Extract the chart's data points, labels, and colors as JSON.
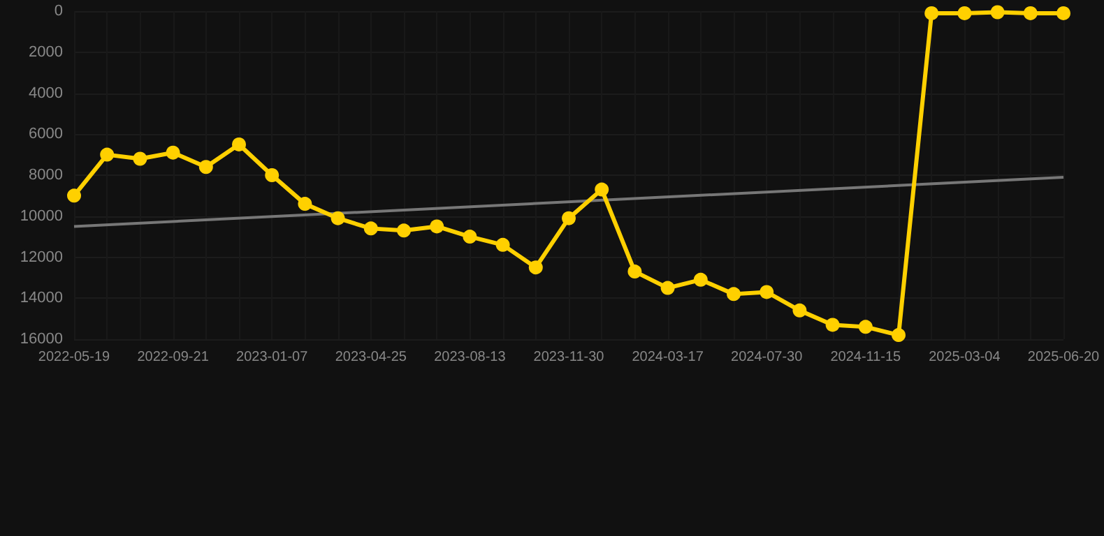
{
  "chart_data": {
    "type": "line",
    "categories": [
      "2022-05-19",
      null,
      null,
      "2022-09-21",
      null,
      null,
      "2023-01-07",
      null,
      null,
      "2023-04-25",
      null,
      null,
      "2023-08-13",
      null,
      null,
      "2023-11-30",
      null,
      null,
      "2024-03-17",
      null,
      null,
      "2024-07-30",
      null,
      null,
      "2024-11-15",
      null,
      null,
      "2025-03-04",
      null,
      null,
      "2025-06-20"
    ],
    "series": [
      {
        "color": "#ffd000",
        "marker": "circle",
        "values": [
          9000,
          7000,
          7200,
          6900,
          7600,
          6500,
          8000,
          9400,
          10100,
          10600,
          10700,
          10500,
          11000,
          11400,
          12500,
          10100,
          8700,
          12700,
          13500,
          13100,
          13800,
          13700,
          14600,
          15300,
          15400,
          15800,
          100,
          100,
          50,
          100,
          100
        ]
      },
      {
        "type": "line",
        "color": "#777777",
        "marker": "none",
        "values": [
          10500,
          null,
          null,
          null,
          null,
          null,
          null,
          null,
          null,
          null,
          null,
          null,
          null,
          null,
          null,
          null,
          null,
          null,
          null,
          null,
          null,
          null,
          null,
          null,
          null,
          null,
          null,
          null,
          null,
          null,
          8100
        ]
      }
    ],
    "ylim": [
      16000,
      0
    ],
    "yticks": [
      0,
      2000,
      4000,
      6000,
      8000,
      10000,
      12000,
      14000,
      16000
    ],
    "grid": true
  }
}
